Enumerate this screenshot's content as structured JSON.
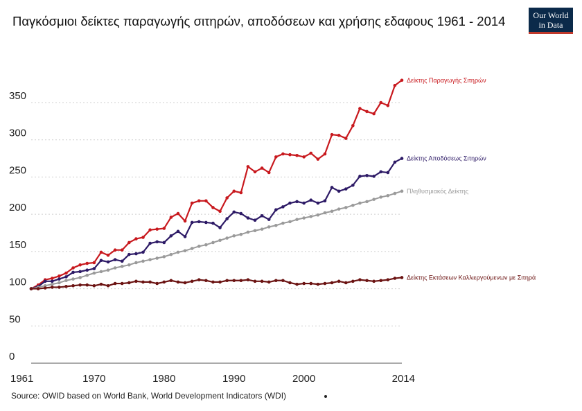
{
  "title": "Παγκόσμιοι δείκτες παραγωγής σιτηρών, αποδόσεων και χρήσης εδαφους 1961 - 2014",
  "logo": {
    "line1": "Our World",
    "line2": "in Data"
  },
  "source": "Source: OWID based on World Bank, World Development Indicators (WDI)",
  "chart_data": {
    "type": "line",
    "title": "Παγκόσμιοι δείκτες παραγωγής σιτηρών, αποδόσεων και χρήσης εδαφους 1961 - 2014",
    "xlabel": "",
    "ylabel": "",
    "xlim": [
      1961,
      2014
    ],
    "ylim": [
      0,
      370
    ],
    "grid": true,
    "x_ticks": [
      "1961",
      "1970",
      "1980",
      "1990",
      "2000",
      "2014"
    ],
    "y_ticks": [
      "0",
      "50",
      "100",
      "150",
      "200",
      "250",
      "300",
      "350"
    ],
    "x": [
      1961,
      1962,
      1963,
      1964,
      1965,
      1966,
      1967,
      1968,
      1969,
      1970,
      1971,
      1972,
      1973,
      1974,
      1975,
      1976,
      1977,
      1978,
      1979,
      1980,
      1981,
      1982,
      1983,
      1984,
      1985,
      1986,
      1987,
      1988,
      1989,
      1990,
      1991,
      1992,
      1993,
      1994,
      1995,
      1996,
      1997,
      1998,
      1999,
      2000,
      2001,
      2002,
      2003,
      2004,
      2005,
      2006,
      2007,
      2008,
      2009,
      2010,
      2011,
      2012,
      2013,
      2014
    ],
    "series": [
      {
        "name": "Δείκτης Παραγωγής Σιτηρών",
        "color": "#c8191e",
        "values": [
          100,
          105,
          112,
          114,
          117,
          121,
          128,
          132,
          134,
          135,
          149,
          145,
          152,
          152,
          162,
          167,
          169,
          179,
          180,
          181,
          196,
          201,
          191,
          215,
          218,
          218,
          209,
          204,
          222,
          231,
          229,
          264,
          257,
          262,
          256,
          277,
          281,
          280,
          279,
          277,
          282,
          274,
          281,
          307,
          306,
          302,
          319,
          342,
          338,
          335,
          350,
          346,
          373,
          380
        ]
      },
      {
        "name": "Δείκτης Αποδόσεως Σιτηρών",
        "color": "#2d1a66",
        "values": [
          100,
          103,
          110,
          110,
          113,
          116,
          122,
          123,
          125,
          127,
          138,
          136,
          139,
          137,
          146,
          147,
          149,
          161,
          163,
          162,
          171,
          177,
          170,
          189,
          190,
          189,
          188,
          182,
          194,
          203,
          201,
          195,
          192,
          198,
          193,
          206,
          210,
          215,
          217,
          215,
          219,
          215,
          218,
          236,
          231,
          234,
          239,
          251,
          252,
          251,
          257,
          256,
          270,
          275
        ]
      },
      {
        "name": "Πληθυσμιακός Δείκτης",
        "color": "#9a9a9a",
        "values": [
          100,
          102,
          104,
          106,
          108,
          111,
          113,
          115,
          118,
          121,
          123,
          125,
          128,
          130,
          132,
          135,
          137,
          139,
          141,
          143,
          146,
          149,
          151,
          154,
          157,
          159,
          162,
          165,
          168,
          171,
          173,
          176,
          178,
          180,
          183,
          185,
          188,
          190,
          193,
          195,
          197,
          199,
          202,
          204,
          207,
          209,
          212,
          215,
          217,
          220,
          223,
          225,
          228,
          231
        ]
      },
      {
        "name": "Δείκτης Εκτάσεων Καλλιεργούμενων με Σιτηρά",
        "color": "#6b1312",
        "values": [
          100,
          100,
          101,
          102,
          102,
          103,
          104,
          105,
          105,
          104,
          106,
          104,
          107,
          107,
          108,
          110,
          109,
          109,
          107,
          109,
          111,
          109,
          108,
          110,
          112,
          111,
          109,
          109,
          111,
          111,
          111,
          112,
          110,
          110,
          109,
          111,
          111,
          108,
          106,
          107,
          107,
          106,
          107,
          108,
          110,
          108,
          110,
          112,
          111,
          110,
          111,
          112,
          114,
          115
        ]
      }
    ]
  }
}
